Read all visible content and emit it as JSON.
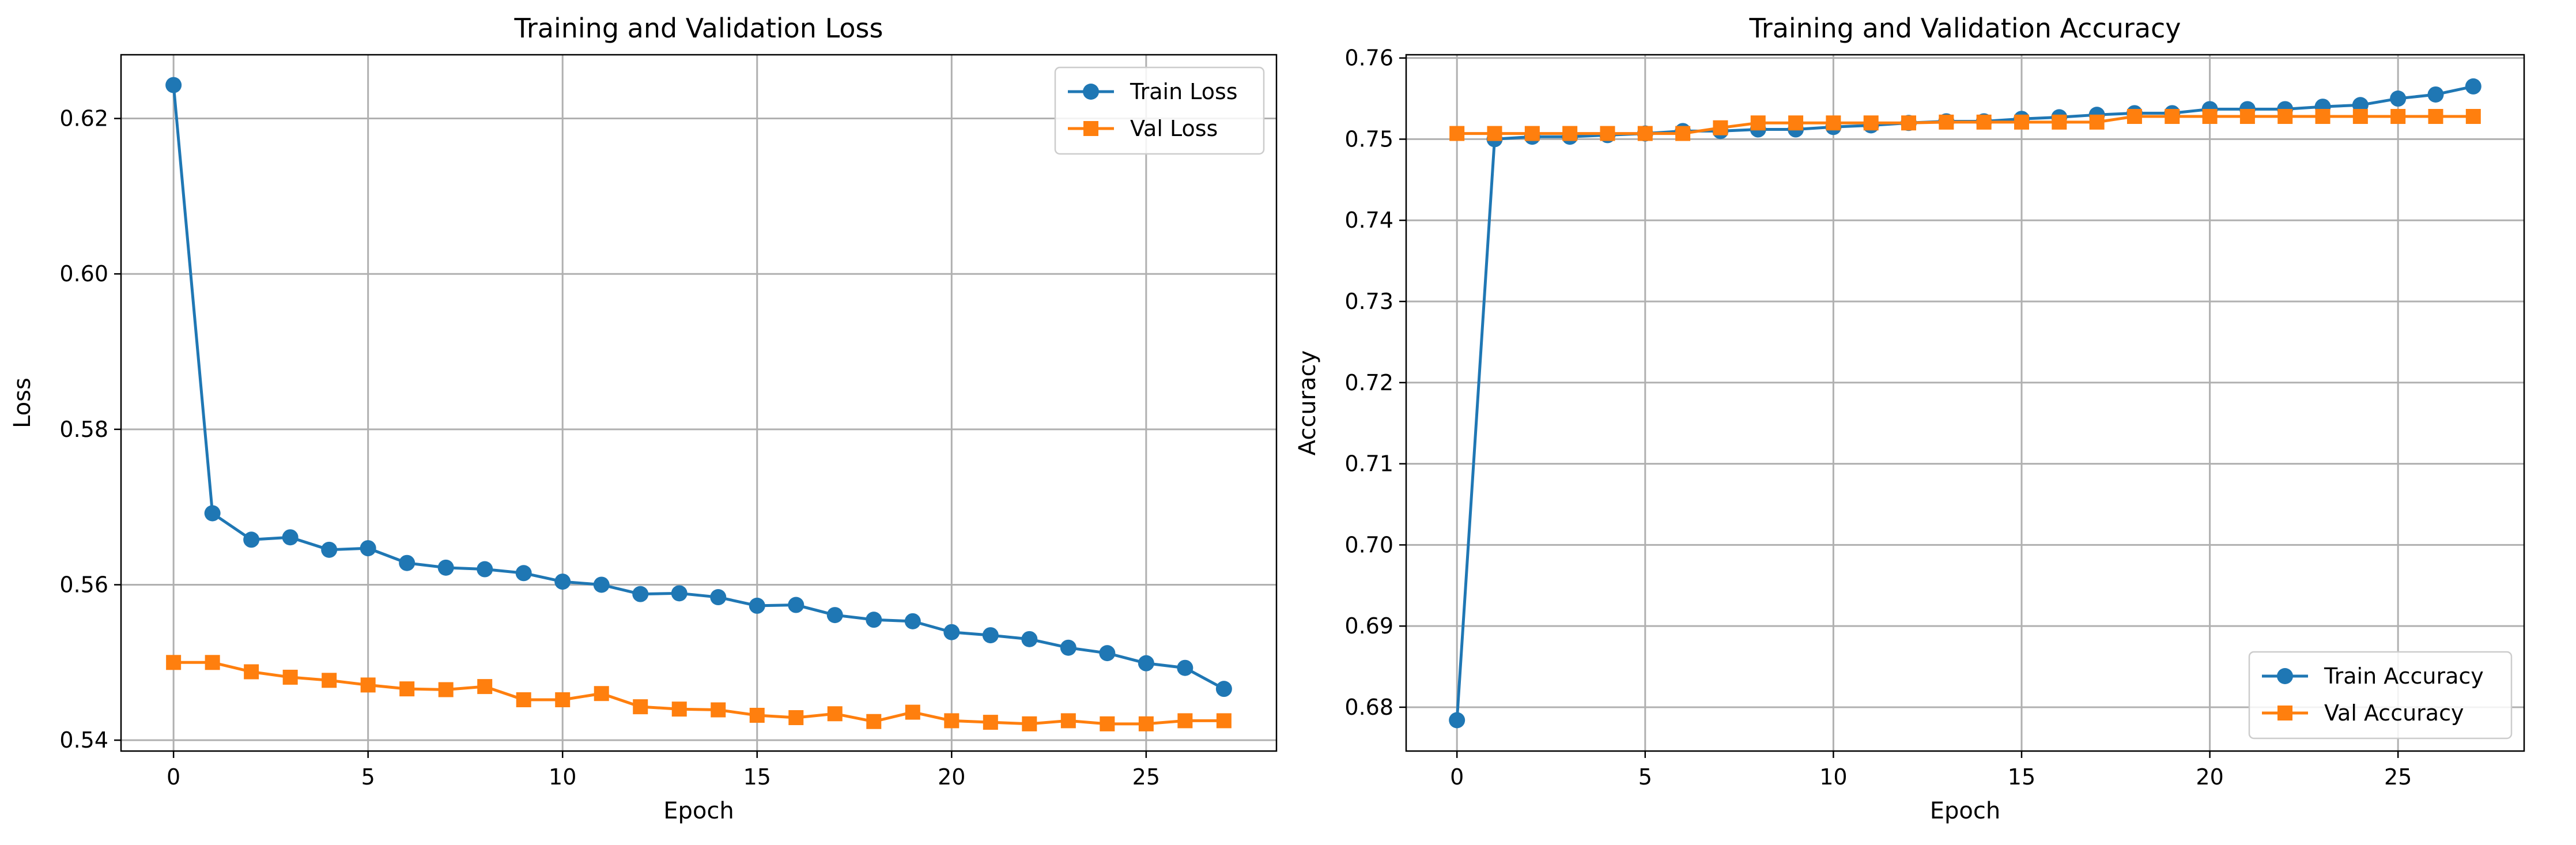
{
  "chart_data": [
    {
      "type": "line",
      "title": "Training and Validation Loss",
      "xlabel": "Epoch",
      "ylabel": "Loss",
      "xlim": [
        -1.35,
        28.35
      ],
      "ylim": [
        0.5386,
        0.6282
      ],
      "xticks": [
        0,
        5,
        10,
        15,
        20,
        25
      ],
      "yticks": [
        0.54,
        0.56,
        0.58,
        0.6,
        0.62
      ],
      "ytick_labels": [
        "0.54",
        "0.56",
        "0.58",
        "0.60",
        "0.62"
      ],
      "grid": true,
      "legend_position": "upper right",
      "x": [
        0,
        1,
        2,
        3,
        4,
        5,
        6,
        7,
        8,
        9,
        10,
        11,
        12,
        13,
        14,
        15,
        16,
        17,
        18,
        19,
        20,
        21,
        22,
        23,
        24,
        25,
        26,
        27
      ],
      "series": [
        {
          "name": "Train Loss",
          "color": "#1f77b4",
          "marker": "circle",
          "values": [
            0.6243,
            0.5692,
            0.5658,
            0.5661,
            0.5645,
            0.5647,
            0.5628,
            0.5622,
            0.562,
            0.5615,
            0.5604,
            0.56,
            0.5588,
            0.5589,
            0.5584,
            0.5573,
            0.5574,
            0.5561,
            0.5555,
            0.5553,
            0.5539,
            0.5535,
            0.553,
            0.5519,
            0.5512,
            0.5499,
            0.5493,
            0.5466
          ]
        },
        {
          "name": "Val Loss",
          "color": "#ff7f0e",
          "marker": "square",
          "values": [
            0.55,
            0.55,
            0.5488,
            0.5481,
            0.5477,
            0.5471,
            0.5466,
            0.5465,
            0.5469,
            0.5452,
            0.5452,
            0.546,
            0.5443,
            0.544,
            0.5439,
            0.5432,
            0.5429,
            0.5434,
            0.5424,
            0.5436,
            0.5425,
            0.5423,
            0.5421,
            0.5425,
            0.5421,
            0.5421,
            0.5425,
            0.5425
          ]
        }
      ]
    },
    {
      "type": "line",
      "title": "Training and Validation Accuracy",
      "xlabel": "Epoch",
      "ylabel": "Accuracy",
      "xlim": [
        -1.35,
        28.35
      ],
      "ylim": [
        0.6746,
        0.7604
      ],
      "xticks": [
        0,
        5,
        10,
        15,
        20,
        25
      ],
      "yticks": [
        0.68,
        0.69,
        0.7,
        0.71,
        0.72,
        0.73,
        0.74,
        0.75,
        0.76
      ],
      "ytick_labels": [
        "0.68",
        "0.69",
        "0.70",
        "0.71",
        "0.72",
        "0.73",
        "0.74",
        "0.75",
        "0.76"
      ],
      "grid": true,
      "legend_position": "lower right",
      "x": [
        0,
        1,
        2,
        3,
        4,
        5,
        6,
        7,
        8,
        9,
        10,
        11,
        12,
        13,
        14,
        15,
        16,
        17,
        18,
        19,
        20,
        21,
        22,
        23,
        24,
        25,
        26,
        27
      ],
      "series": [
        {
          "name": "Train Accuracy",
          "color": "#1f77b4",
          "marker": "circle",
          "values": [
            0.6784,
            0.75,
            0.7503,
            0.7503,
            0.7505,
            0.7507,
            0.751,
            0.751,
            0.7512,
            0.7512,
            0.7515,
            0.7517,
            0.752,
            0.7522,
            0.7522,
            0.7525,
            0.7527,
            0.753,
            0.7532,
            0.7532,
            0.7537,
            0.7537,
            0.7537,
            0.754,
            0.7542,
            0.755,
            0.7555,
            0.7565
          ]
        },
        {
          "name": "Val Accuracy",
          "color": "#ff7f0e",
          "marker": "square",
          "values": [
            0.7507,
            0.7507,
            0.7507,
            0.7507,
            0.7507,
            0.7507,
            0.7507,
            0.7514,
            0.752,
            0.752,
            0.752,
            0.752,
            0.752,
            0.7521,
            0.7521,
            0.7521,
            0.7521,
            0.7521,
            0.7528,
            0.7528,
            0.7528,
            0.7528,
            0.7528,
            0.7528,
            0.7528,
            0.7528,
            0.7528,
            0.7528
          ]
        }
      ]
    }
  ]
}
